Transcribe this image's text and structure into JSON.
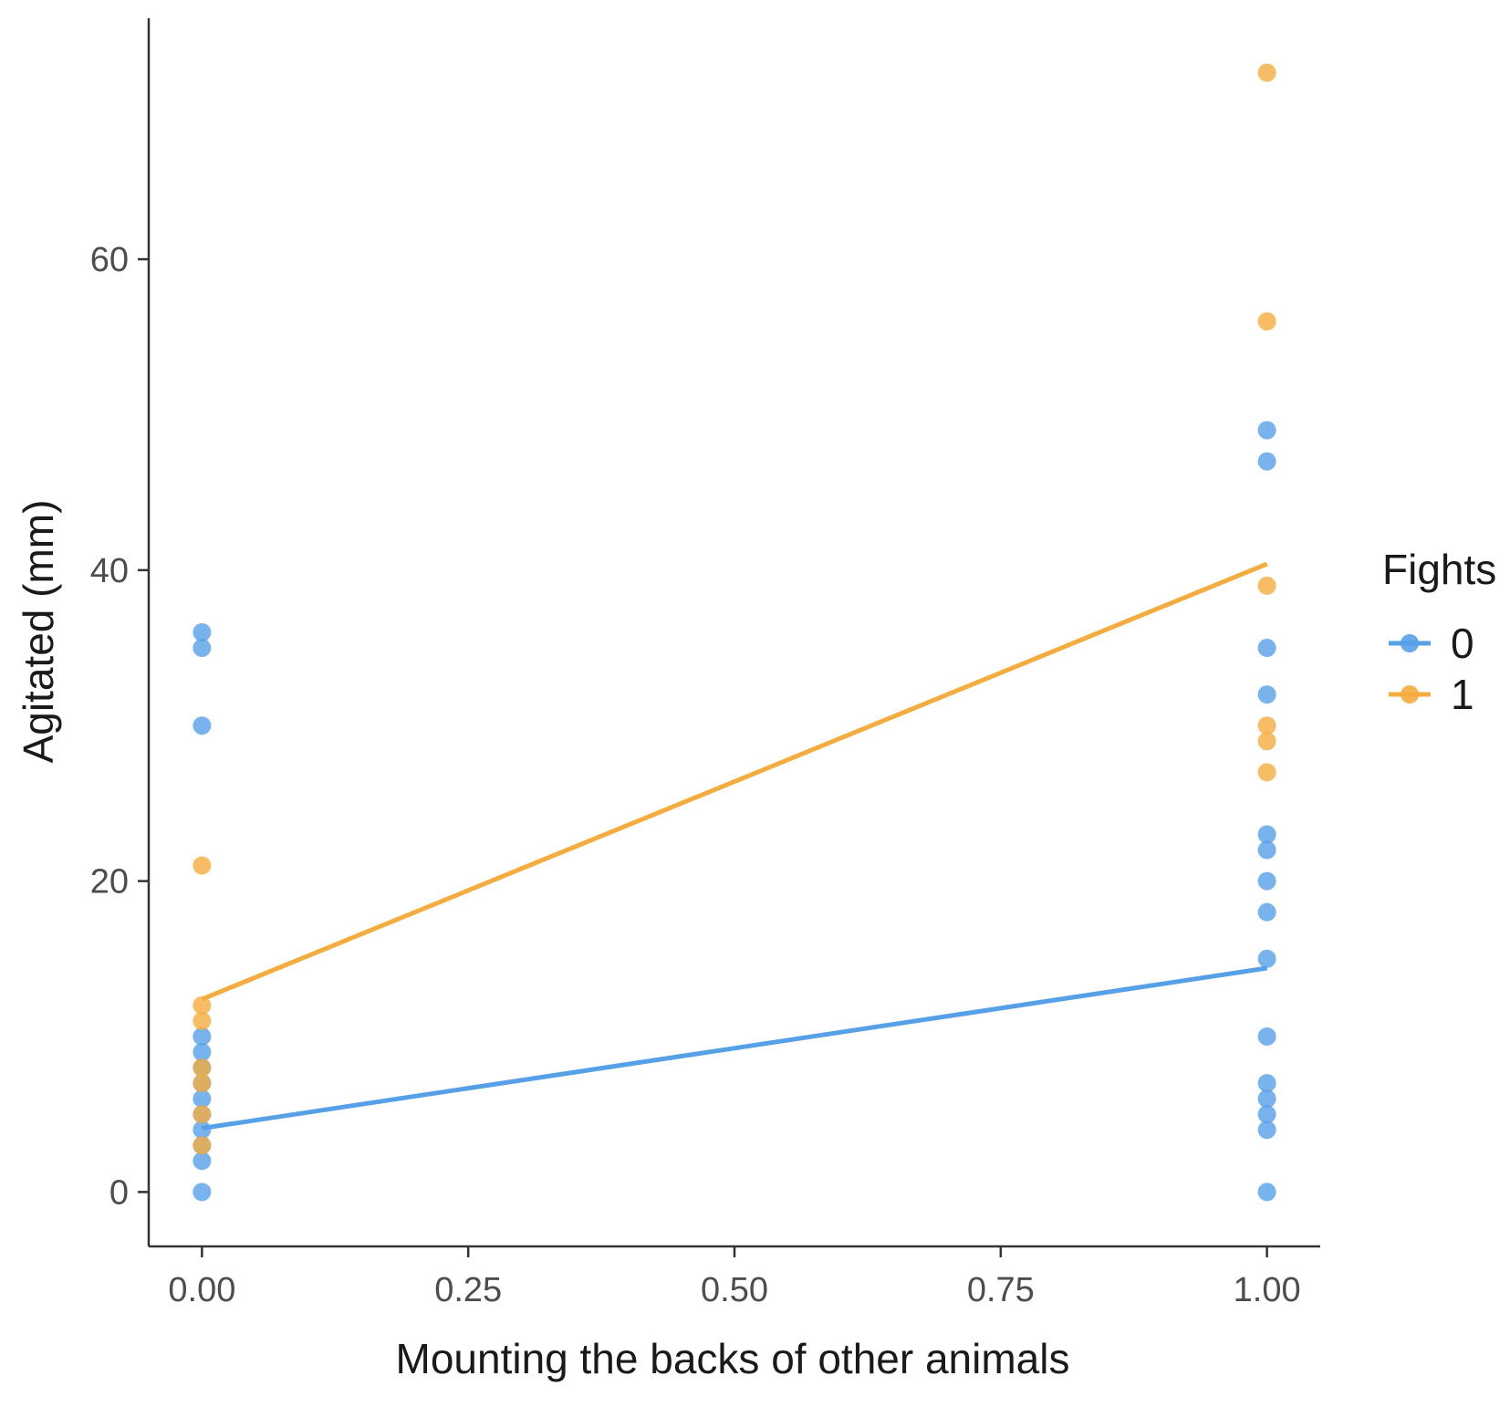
{
  "chart_data": {
    "type": "scatter",
    "xlabel": "Mounting the backs of other animals",
    "ylabel": "Agitated (mm)",
    "xlim": [
      -0.05,
      1.05
    ],
    "ylim": [
      -3.5,
      75.5
    ],
    "x_ticks": [
      0,
      0.25,
      0.5,
      0.75,
      1
    ],
    "x_tick_labels": [
      "0.00",
      "0.25",
      "0.50",
      "0.75",
      "1.00"
    ],
    "y_ticks": [
      0,
      20,
      40,
      60
    ],
    "y_tick_labels": [
      "0",
      "20",
      "40",
      "60"
    ],
    "grid": false,
    "legend": {
      "title": "Fights",
      "position": "right"
    },
    "series": [
      {
        "name": "0",
        "color": "#56a0e8",
        "points": [
          [
            0,
            36
          ],
          [
            0,
            35
          ],
          [
            0,
            30
          ],
          [
            0,
            10
          ],
          [
            0,
            9
          ],
          [
            0,
            8
          ],
          [
            0,
            7
          ],
          [
            0,
            6
          ],
          [
            0,
            5
          ],
          [
            0,
            4
          ],
          [
            0,
            3
          ],
          [
            0,
            2
          ],
          [
            0,
            0
          ],
          [
            1,
            49
          ],
          [
            1,
            47
          ],
          [
            1,
            35
          ],
          [
            1,
            32
          ],
          [
            1,
            23
          ],
          [
            1,
            22
          ],
          [
            1,
            20
          ],
          [
            1,
            18
          ],
          [
            1,
            15
          ],
          [
            1,
            10
          ],
          [
            1,
            7
          ],
          [
            1,
            6
          ],
          [
            1,
            5
          ],
          [
            1,
            4
          ],
          [
            1,
            0
          ]
        ],
        "fit": [
          [
            0,
            4.1
          ],
          [
            1,
            14.4
          ]
        ]
      },
      {
        "name": "1",
        "color": "#f5ac3e",
        "points": [
          [
            0,
            21
          ],
          [
            0,
            12
          ],
          [
            0,
            11
          ],
          [
            0,
            8
          ],
          [
            0,
            7
          ],
          [
            0,
            5
          ],
          [
            0,
            3
          ],
          [
            1,
            72
          ],
          [
            1,
            56
          ],
          [
            1,
            39
          ],
          [
            1,
            30
          ],
          [
            1,
            29
          ],
          [
            1,
            27
          ]
        ],
        "fit": [
          [
            0,
            12.4
          ],
          [
            1,
            40.4
          ]
        ]
      }
    ]
  }
}
